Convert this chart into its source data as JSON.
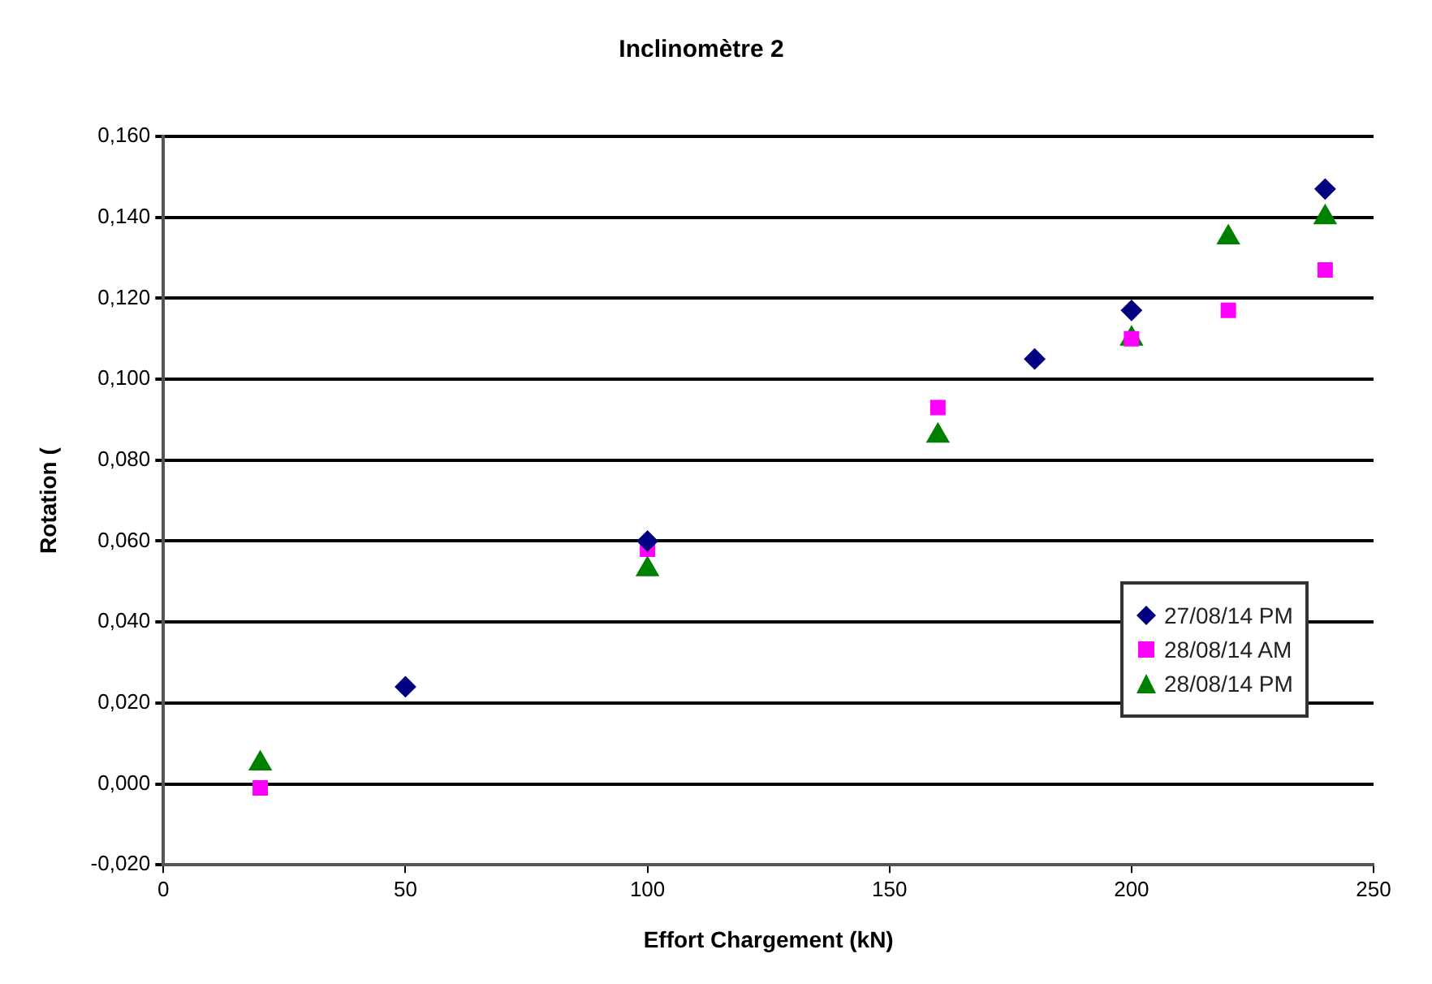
{
  "chart_data": {
    "type": "scatter",
    "title": "Inclinomètre 2",
    "xlabel": "Effort Chargement (kN)",
    "ylabel": "Rotation (",
    "xlim": [
      0,
      250
    ],
    "xticks": [
      0,
      50,
      100,
      150,
      200,
      250
    ],
    "ylim": [
      -0.02,
      0.16
    ],
    "yticks": [
      {
        "value": -0.02,
        "label": "-0,020"
      },
      {
        "value": 0,
        "label": "0,000"
      },
      {
        "value": 0.02,
        "label": "0,020"
      },
      {
        "value": 0.04,
        "label": "0,040"
      },
      {
        "value": 0.06,
        "label": "0,060"
      },
      {
        "value": 0.08,
        "label": "0,080"
      },
      {
        "value": 0.1,
        "label": "0,100"
      },
      {
        "value": 0.12,
        "label": "0,120"
      },
      {
        "value": 0.14,
        "label": "0,140"
      },
      {
        "value": 0.16,
        "label": "0,160"
      }
    ],
    "grid": "y",
    "legend": "bottom right",
    "series": [
      {
        "name": "27/08/14 PM",
        "color": "#000080",
        "marker": "diamond",
        "x": [
          50,
          100,
          180,
          200,
          240
        ],
        "values": [
          0.024,
          0.06,
          0.105,
          0.117,
          0.147
        ]
      },
      {
        "name": "28/08/14 AM",
        "color": "#ff00ff",
        "marker": "square",
        "x": [
          20,
          100,
          160,
          200,
          220,
          240
        ],
        "values": [
          -0.001,
          0.058,
          0.093,
          0.11,
          0.117,
          0.127
        ]
      },
      {
        "name": "28/08/14 PM",
        "color": "#008000",
        "marker": "triangle",
        "x": [
          20,
          100,
          160,
          200,
          220,
          240
        ],
        "values": [
          0.005,
          0.053,
          0.086,
          0.11,
          0.135,
          0.14
        ]
      }
    ]
  }
}
